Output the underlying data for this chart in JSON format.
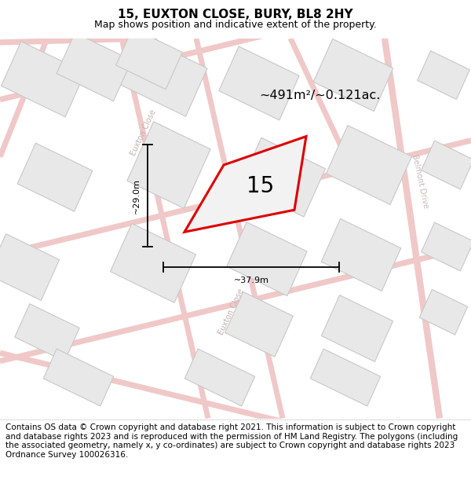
{
  "title": "15, EUXTON CLOSE, BURY, BL8 2HY",
  "subtitle": "Map shows position and indicative extent of the property.",
  "footer": "Contains OS data © Crown copyright and database right 2021. This information is subject to Crown copyright and database rights 2023 and is reproduced with the permission of HM Land Registry. The polygons (including the associated geometry, namely x, y co-ordinates) are subject to Crown copyright and database rights 2023 Ordnance Survey 100026316.",
  "area_text": "~491m²/~0.121ac.",
  "property_number": "15",
  "dim_width": "~37.9m",
  "dim_height": "~29.0m",
  "map_bg": "#ffffff",
  "road_color": "#f0c8c8",
  "road_lw": 0.8,
  "building_color": "#e8e8e8",
  "building_edge": "#c8c8c8",
  "highlight_color": "#dd0000",
  "road_label_color": "#c8b0b0",
  "belmont_label_color": "#c8b8b8",
  "title_fontsize": 11,
  "subtitle_fontsize": 9,
  "footer_fontsize": 7.5
}
